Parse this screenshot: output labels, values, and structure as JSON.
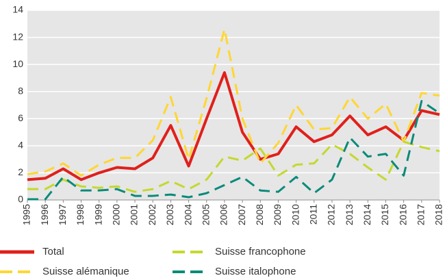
{
  "chart_data": {
    "type": "line",
    "categories": [
      "1995",
      "1996",
      "1997",
      "1998",
      "1999",
      "2000",
      "2001",
      "2002",
      "2003",
      "2004",
      "2005",
      "2006",
      "2007",
      "2008",
      "2009",
      "2010",
      "2011",
      "2012",
      "2013",
      "2014",
      "2015",
      "2016",
      "2017",
      "2018"
    ],
    "series": [
      {
        "name": "Total",
        "color": "#e0201b",
        "dashed": false,
        "values": [
          1.5,
          1.6,
          2.3,
          1.5,
          2.0,
          2.4,
          2.3,
          3.1,
          5.5,
          2.5,
          6.0,
          9.4,
          5.0,
          3.0,
          3.4,
          5.4,
          4.3,
          4.8,
          6.2,
          4.8,
          5.4,
          4.4,
          6.6,
          6.3
        ]
      },
      {
        "name": "Suisse alémanique",
        "color": "#ffd633",
        "dashed": true,
        "values": [
          1.9,
          2.1,
          2.7,
          1.8,
          2.6,
          3.1,
          3.1,
          4.4,
          7.6,
          3.0,
          7.5,
          12.6,
          6.0,
          2.7,
          4.2,
          7.0,
          5.2,
          5.3,
          7.6,
          6.0,
          7.1,
          4.3,
          7.9,
          7.7
        ]
      },
      {
        "name": "Suisse francophone",
        "color": "#c5d82d",
        "dashed": true,
        "values": [
          0.8,
          0.8,
          1.5,
          1.0,
          0.9,
          1.0,
          0.6,
          0.8,
          1.4,
          0.8,
          1.5,
          3.2,
          2.9,
          3.8,
          1.8,
          2.6,
          2.7,
          4.1,
          3.4,
          2.4,
          1.5,
          4.3,
          3.9,
          3.6
        ]
      },
      {
        "name": "Suisse italophone",
        "color": "#0a8a7a",
        "dashed": true,
        "values": [
          0.05,
          0.05,
          1.7,
          0.7,
          0.7,
          0.8,
          0.3,
          0.3,
          0.4,
          0.2,
          0.5,
          1.1,
          1.7,
          0.7,
          0.6,
          1.7,
          0.5,
          1.5,
          4.6,
          3.2,
          3.4,
          1.8,
          7.3,
          6.4
        ]
      }
    ],
    "ylim": [
      0,
      14
    ],
    "yticks": [
      0,
      2,
      4,
      6,
      8,
      10,
      12,
      14
    ],
    "grid": true
  }
}
